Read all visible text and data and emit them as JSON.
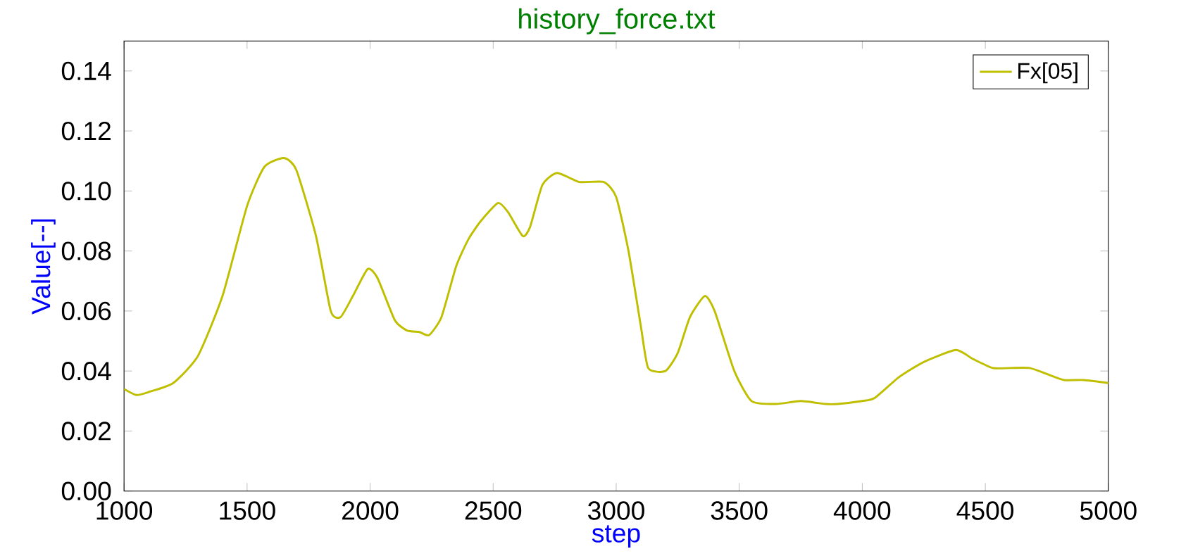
{
  "chart_data": {
    "type": "line",
    "title": "history_force.txt",
    "xlabel": "step",
    "ylabel": "Value[--]",
    "x": [
      1000,
      1050,
      1100,
      1200,
      1300,
      1400,
      1500,
      1570,
      1650,
      1700,
      1780,
      1840,
      1880,
      1930,
      1990,
      2030,
      2100,
      2150,
      2200,
      2240,
      2290,
      2350,
      2400,
      2450,
      2520,
      2560,
      2620,
      2650,
      2700,
      2760,
      2850,
      2950,
      3000,
      3050,
      3100,
      3130,
      3200,
      3250,
      3300,
      3360,
      3400,
      3480,
      3550,
      3650,
      3750,
      3850,
      3900,
      4000,
      4050,
      4150,
      4250,
      4380,
      4450,
      4530,
      4600,
      4680,
      4750,
      4820,
      4900,
      5000
    ],
    "series": [
      {
        "name": "Fx[05]",
        "color": "#bfbf00",
        "values": [
          0.034,
          0.032,
          0.033,
          0.036,
          0.045,
          0.065,
          0.095,
          0.108,
          0.111,
          0.107,
          0.085,
          0.06,
          0.058,
          0.065,
          0.074,
          0.071,
          0.057,
          0.0535,
          0.053,
          0.052,
          0.058,
          0.075,
          0.084,
          0.09,
          0.096,
          0.093,
          0.085,
          0.088,
          0.102,
          0.106,
          0.103,
          0.103,
          0.098,
          0.08,
          0.055,
          0.041,
          0.04,
          0.046,
          0.058,
          0.065,
          0.06,
          0.04,
          0.03,
          0.029,
          0.03,
          0.029,
          0.029,
          0.03,
          0.031,
          0.038,
          0.043,
          0.047,
          0.044,
          0.041,
          0.041,
          0.041,
          0.039,
          0.037,
          0.037,
          0.036
        ]
      }
    ],
    "xlim": [
      1000,
      5000
    ],
    "ylim": [
      0,
      0.15
    ],
    "xticks": [
      1000,
      1500,
      2000,
      2500,
      3000,
      3500,
      4000,
      4500,
      5000
    ],
    "yticks": [
      {
        "value": 0,
        "label": "0.00"
      },
      {
        "value": 0.02,
        "label": "0.02"
      },
      {
        "value": 0.04,
        "label": "0.04"
      },
      {
        "value": 0.06,
        "label": "0.06"
      },
      {
        "value": 0.08,
        "label": "0.08"
      },
      {
        "value": 0.1,
        "label": "0.10"
      },
      {
        "value": 0.12,
        "label": "0.12"
      },
      {
        "value": 0.14,
        "label": "0.14"
      }
    ],
    "legend": "top right",
    "grid": false,
    "marker": "none",
    "line_style": "solid"
  }
}
